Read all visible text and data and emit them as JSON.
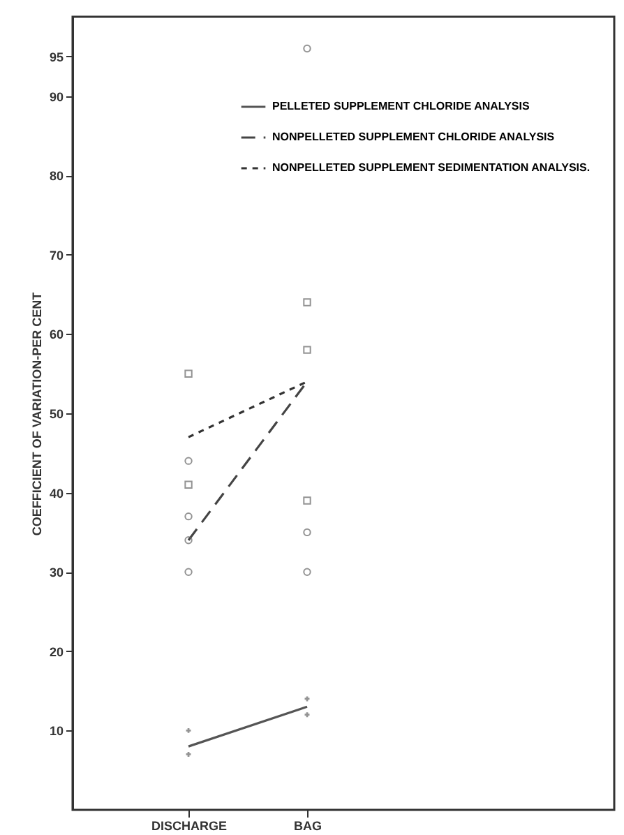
{
  "chart_data": {
    "type": "line",
    "ylabel": "COEFFICIENT OF VARIATION-PER CENT",
    "categories": [
      "DISCHARGE",
      "BAG"
    ],
    "ylim": [
      0,
      100
    ],
    "yticks": [
      10,
      20,
      30,
      40,
      50,
      60,
      70,
      80,
      90,
      95
    ],
    "grid": false,
    "legend": "top right",
    "series": [
      {
        "name": "PELLETED SUPPLEMENT CHLORIDE ANALYSIS",
        "color": "#555555",
        "line_style": "solid",
        "marker": "none",
        "values": [
          8,
          13
        ]
      },
      {
        "name": "NONPELLETED SUPPLEMENT CHLORIDE ANALYSIS",
        "color": "#444444",
        "line_style": "dashed",
        "marker": "none",
        "values": [
          34,
          54
        ]
      },
      {
        "name": "NONPELLETED SUPPLEMENT SEDIMENTATION ANALYSIS.",
        "color": "#333333",
        "line_style": "dotted",
        "marker": "none",
        "values": [
          47,
          54
        ]
      },
      {
        "type": "scatter",
        "marker": "circle",
        "color": "#666666",
        "x": [
          "DISCHARGE",
          "DISCHARGE",
          "DISCHARGE",
          "DISCHARGE",
          "BAG",
          "BAG",
          "BAG"
        ],
        "values": [
          30,
          34,
          37,
          44,
          96,
          35,
          30
        ]
      },
      {
        "type": "scatter",
        "marker": "square",
        "color": "#666666",
        "x": [
          "DISCHARGE",
          "DISCHARGE",
          "BAG",
          "BAG",
          "BAG"
        ],
        "values": [
          41,
          55,
          64,
          58,
          39
        ]
      },
      {
        "type": "scatter",
        "marker": "cross",
        "color": "#666666",
        "x": [
          "DISCHARGE",
          "DISCHARGE",
          "BAG",
          "BAG"
        ],
        "values": [
          10,
          7,
          14,
          12
        ]
      }
    ]
  }
}
